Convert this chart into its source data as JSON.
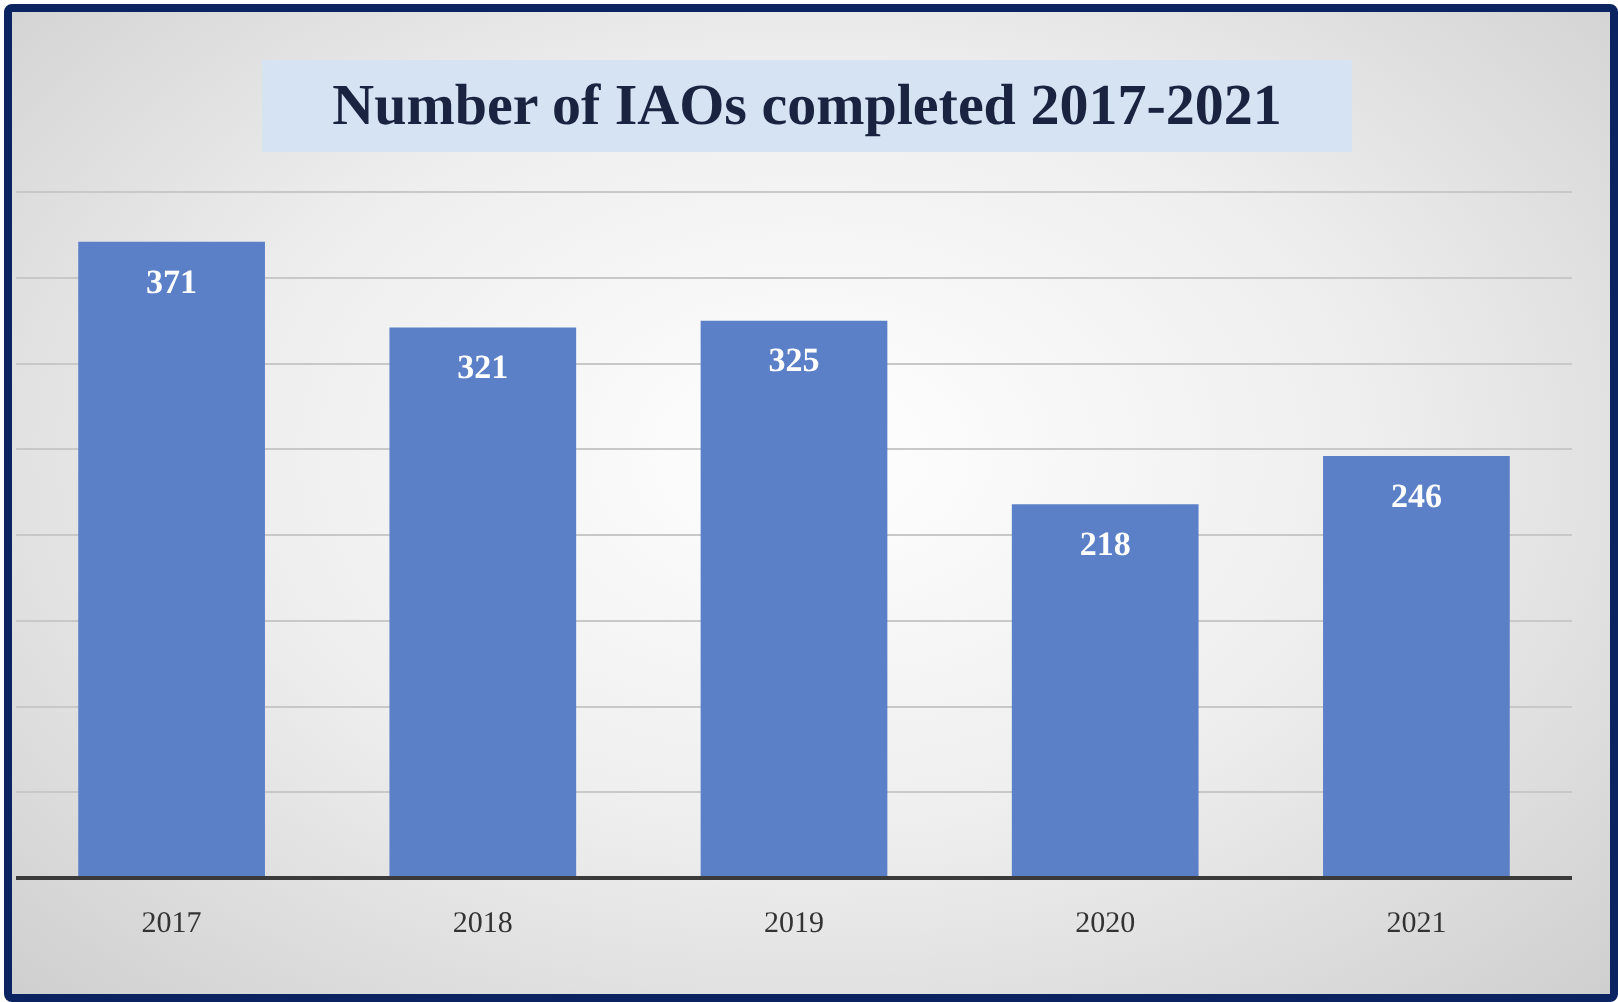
{
  "chart_data": {
    "type": "bar",
    "title": "Number of IAOs completed 2017-2021",
    "categories": [
      "2017",
      "2018",
      "2019",
      "2020",
      "2021"
    ],
    "values": [
      371,
      321,
      325,
      218,
      246
    ],
    "color": "#5b80c8",
    "ylim": [
      0,
      400
    ],
    "yticks": [
      {
        "value": 0,
        "label": null
      },
      {
        "value": 50,
        "label": null
      },
      {
        "value": 100,
        "label": null
      },
      {
        "value": 150,
        "label": null
      },
      {
        "value": 200,
        "label": null
      },
      {
        "value": 250,
        "label": null
      },
      {
        "value": 300,
        "label": null
      },
      {
        "value": 350,
        "label": null
      },
      {
        "value": 400,
        "label": null
      }
    ],
    "grid": "y",
    "tick_labels": "x",
    "data_labels": true,
    "legend": false
  }
}
